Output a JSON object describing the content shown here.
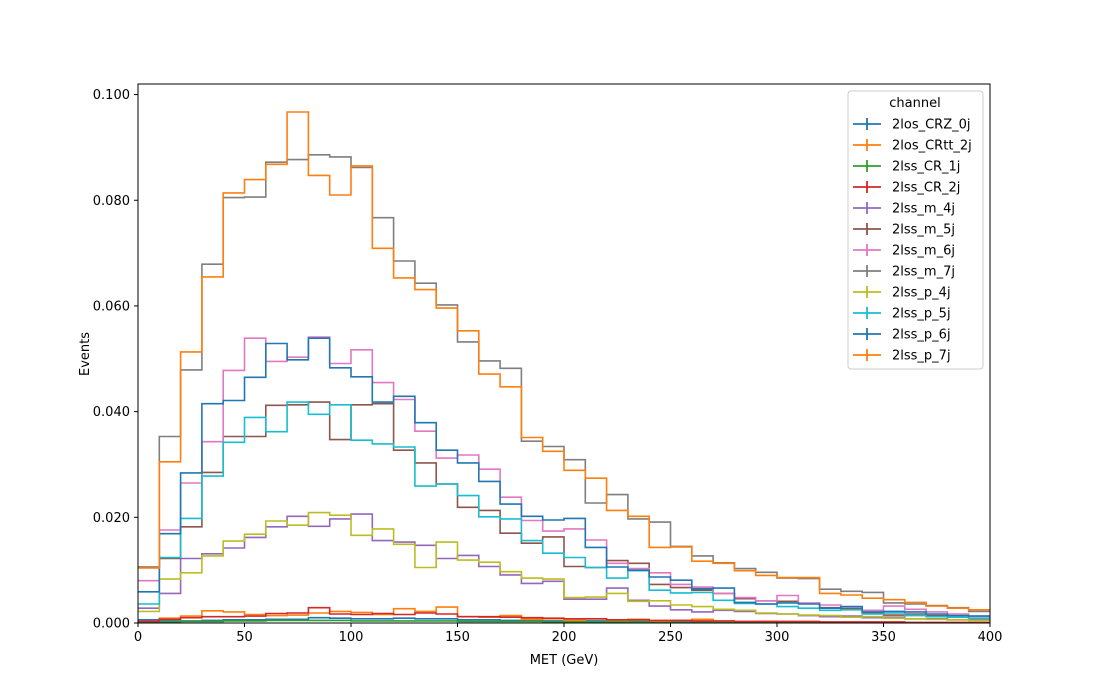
{
  "chart_data": {
    "type": "histogram",
    "xlabel": "MET (GeV)",
    "ylabel": "Events",
    "xlim": [
      0,
      400
    ],
    "ylim": [
      0,
      0.102
    ],
    "bin_edges": [
      0,
      10,
      20,
      30,
      40,
      50,
      60,
      70,
      80,
      90,
      100,
      110,
      120,
      130,
      140,
      150,
      160,
      170,
      180,
      190,
      200,
      210,
      220,
      230,
      240,
      250,
      260,
      270,
      280,
      290,
      300,
      310,
      320,
      330,
      340,
      350,
      360,
      370,
      380,
      390,
      400
    ],
    "x_ticks": [
      0,
      50,
      100,
      150,
      200,
      250,
      300,
      350,
      400
    ],
    "x_tick_labels": [
      "0",
      "50",
      "100",
      "150",
      "200",
      "250",
      "300",
      "350",
      "400"
    ],
    "y_ticks": [
      0,
      0.02,
      0.04,
      0.06,
      0.08,
      0.1
    ],
    "y_tick_labels": [
      "0.000",
      "0.020",
      "0.040",
      "0.060",
      "0.080",
      "0.100"
    ],
    "grid": false,
    "legend": {
      "title": "channel",
      "placement": "top-right"
    },
    "series": [
      {
        "name": "2los_CRZ_0j",
        "color": "#1f77b4",
        "values": [
          0.0006,
          0.0004,
          0.0004,
          0.0005,
          0.0006,
          0.0006,
          0.0007,
          0.0007,
          0.001,
          0.0009,
          0.0008,
          0.0008,
          0.0009,
          0.0008,
          0.0008,
          0.0006,
          0.0006,
          0.0005,
          0.0005,
          0.0004,
          0.0004,
          0.0004,
          0.0003,
          0.0003,
          0.0003,
          0.0003,
          0.0002,
          0.0002,
          0.0002,
          0.0002,
          0.0002,
          0.0002,
          0.0001,
          0.0001,
          0.0001,
          0.0001,
          0.0001,
          0.0001,
          0.0001,
          0.0001
        ]
      },
      {
        "name": "2los_CRtt_2j",
        "color": "#ff7f0e",
        "values": [
          0.0003,
          0.0009,
          0.0013,
          0.0023,
          0.0021,
          0.0016,
          0.0014,
          0.0015,
          0.0019,
          0.0022,
          0.002,
          0.0016,
          0.0027,
          0.0022,
          0.003,
          0.0012,
          0.0011,
          0.0014,
          0.0007,
          0.0008,
          0.0005,
          0.0008,
          0.0003,
          0.0007,
          0.0003,
          0.0005,
          0.0007,
          0.0003,
          0.0002,
          0.0003,
          0.0002,
          0.0002,
          0.0001,
          0.0001,
          0.0001,
          0.0001,
          0.0001,
          0.0001,
          0.0001,
          0.0001
        ]
      },
      {
        "name": "2lss_CR_1j",
        "color": "#2ca02c",
        "values": [
          0.0001,
          0.0002,
          0.0003,
          0.0003,
          0.0004,
          0.0004,
          0.0005,
          0.0005,
          0.0005,
          0.0005,
          0.0004,
          0.0004,
          0.0004,
          0.0004,
          0.0004,
          0.0003,
          0.0003,
          0.0003,
          0.0003,
          0.0002,
          0.0002,
          0.0002,
          0.0002,
          0.0002,
          0.0001,
          0.0001,
          0.0001,
          0.0001,
          0.0001,
          0.0001,
          0.0001,
          0.0001,
          0.0001,
          0.0001,
          0.0001,
          0.0,
          0.0,
          0.0,
          0.0,
          0.0
        ]
      },
      {
        "name": "2lss_CR_2j",
        "color": "#d62728",
        "values": [
          0.0003,
          0.0007,
          0.001,
          0.0012,
          0.0012,
          0.0013,
          0.0018,
          0.0019,
          0.0029,
          0.0017,
          0.0016,
          0.0018,
          0.0016,
          0.0019,
          0.0017,
          0.0012,
          0.0012,
          0.0011,
          0.001,
          0.0009,
          0.0008,
          0.0008,
          0.0006,
          0.0006,
          0.0005,
          0.0005,
          0.0004,
          0.0004,
          0.0003,
          0.0003,
          0.0003,
          0.0003,
          0.0002,
          0.0002,
          0.0002,
          0.0002,
          0.0001,
          0.0001,
          0.0001,
          0.0001
        ]
      },
      {
        "name": "2lss_m_4j",
        "color": "#9467bd",
        "values": [
          0.0028,
          0.0056,
          0.0122,
          0.0131,
          0.0142,
          0.0162,
          0.0182,
          0.0202,
          0.0183,
          0.0197,
          0.0206,
          0.0156,
          0.0153,
          0.0147,
          0.0122,
          0.0128,
          0.0107,
          0.0091,
          0.0075,
          0.0079,
          0.0045,
          0.0045,
          0.0066,
          0.0043,
          0.0032,
          0.0025,
          0.0021,
          0.0024,
          0.0022,
          0.0018,
          0.0017,
          0.0014,
          0.0012,
          0.0013,
          0.001,
          0.0011,
          0.0008,
          0.0008,
          0.0006,
          0.0006
        ]
      },
      {
        "name": "2lss_m_5j",
        "color": "#8c564b",
        "values": [
          0.0106,
          0.0122,
          0.0182,
          0.0285,
          0.0353,
          0.0353,
          0.0412,
          0.0413,
          0.0418,
          0.0347,
          0.0413,
          0.0415,
          0.0327,
          0.0303,
          0.0263,
          0.0219,
          0.0213,
          0.017,
          0.0151,
          0.0163,
          0.0107,
          0.0105,
          0.0118,
          0.0113,
          0.0073,
          0.0067,
          0.0062,
          0.0056,
          0.0046,
          0.0042,
          0.0041,
          0.0037,
          0.0029,
          0.0027,
          0.0019,
          0.0015,
          0.0017,
          0.0014,
          0.0011,
          0.0009
        ]
      },
      {
        "name": "2lss_m_6j",
        "color": "#e377c2",
        "values": [
          0.008,
          0.0176,
          0.0265,
          0.0343,
          0.0478,
          0.0539,
          0.0495,
          0.0503,
          0.0541,
          0.0491,
          0.0517,
          0.0455,
          0.0423,
          0.0363,
          0.0312,
          0.0318,
          0.0291,
          0.0238,
          0.0194,
          0.0174,
          0.0178,
          0.0157,
          0.0113,
          0.0103,
          0.0095,
          0.0073,
          0.0068,
          0.0056,
          0.0048,
          0.0042,
          0.0052,
          0.0038,
          0.0034,
          0.003,
          0.0024,
          0.0032,
          0.0026,
          0.0021,
          0.0017,
          0.0013
        ]
      },
      {
        "name": "2lss_m_7j",
        "color": "#7f7f7f",
        "values": [
          0.0105,
          0.0353,
          0.0479,
          0.0679,
          0.0805,
          0.0806,
          0.0872,
          0.0877,
          0.0886,
          0.0882,
          0.0862,
          0.0767,
          0.0685,
          0.0643,
          0.0602,
          0.0532,
          0.0496,
          0.0482,
          0.0344,
          0.0334,
          0.0309,
          0.0227,
          0.0243,
          0.0197,
          0.0191,
          0.0145,
          0.0127,
          0.0114,
          0.0103,
          0.0096,
          0.0085,
          0.0084,
          0.0064,
          0.006,
          0.0058,
          0.0038,
          0.0036,
          0.0033,
          0.0029,
          0.0022
        ]
      },
      {
        "name": "2lss_p_4j",
        "color": "#bcbd22",
        "values": [
          0.0022,
          0.0083,
          0.0095,
          0.0127,
          0.0155,
          0.0168,
          0.0193,
          0.0185,
          0.0209,
          0.0204,
          0.0166,
          0.0178,
          0.0149,
          0.0105,
          0.0153,
          0.0119,
          0.0115,
          0.0097,
          0.0085,
          0.0083,
          0.0048,
          0.0049,
          0.0056,
          0.0041,
          0.0042,
          0.0034,
          0.0031,
          0.0026,
          0.0024,
          0.0019,
          0.0017,
          0.0015,
          0.0014,
          0.0011,
          0.0012,
          0.0009,
          0.0008,
          0.0007,
          0.0006,
          0.0005
        ]
      },
      {
        "name": "2lss_p_5j",
        "color": "#17becf",
        "values": [
          0.0036,
          0.0124,
          0.0198,
          0.0278,
          0.0342,
          0.0389,
          0.0362,
          0.0418,
          0.0395,
          0.0413,
          0.0346,
          0.0339,
          0.0333,
          0.0259,
          0.0263,
          0.0241,
          0.0201,
          0.0197,
          0.0156,
          0.0132,
          0.0124,
          0.0105,
          0.0085,
          0.0099,
          0.0062,
          0.0057,
          0.0058,
          0.0043,
          0.0037,
          0.0036,
          0.0031,
          0.0028,
          0.0024,
          0.0025,
          0.0017,
          0.0019,
          0.0014,
          0.0012,
          0.0011,
          0.0009
        ]
      },
      {
        "name": "2lss_p_6j",
        "color": "#1f77b4",
        "values": [
          0.0059,
          0.0169,
          0.0284,
          0.0415,
          0.0421,
          0.0465,
          0.0529,
          0.0498,
          0.0539,
          0.0483,
          0.0466,
          0.0418,
          0.0429,
          0.0379,
          0.0327,
          0.0303,
          0.0268,
          0.0225,
          0.0202,
          0.0195,
          0.0198,
          0.0143,
          0.0106,
          0.01,
          0.0087,
          0.0081,
          0.0065,
          0.0066,
          0.0039,
          0.0036,
          0.0038,
          0.0036,
          0.0028,
          0.0031,
          0.0021,
          0.0022,
          0.0021,
          0.0017,
          0.0014,
          0.0013
        ]
      },
      {
        "name": "2lss_p_7j",
        "color": "#ff7f0e",
        "values": [
          0.0104,
          0.0305,
          0.0513,
          0.0655,
          0.0814,
          0.0839,
          0.0868,
          0.0967,
          0.0847,
          0.081,
          0.0865,
          0.0709,
          0.0653,
          0.0631,
          0.0596,
          0.0553,
          0.0471,
          0.0447,
          0.0351,
          0.0325,
          0.0289,
          0.0274,
          0.0213,
          0.0202,
          0.0143,
          0.0144,
          0.0117,
          0.0113,
          0.0099,
          0.009,
          0.0086,
          0.0086,
          0.0056,
          0.0053,
          0.0047,
          0.0044,
          0.0039,
          0.0032,
          0.0028,
          0.0025
        ]
      }
    ]
  }
}
